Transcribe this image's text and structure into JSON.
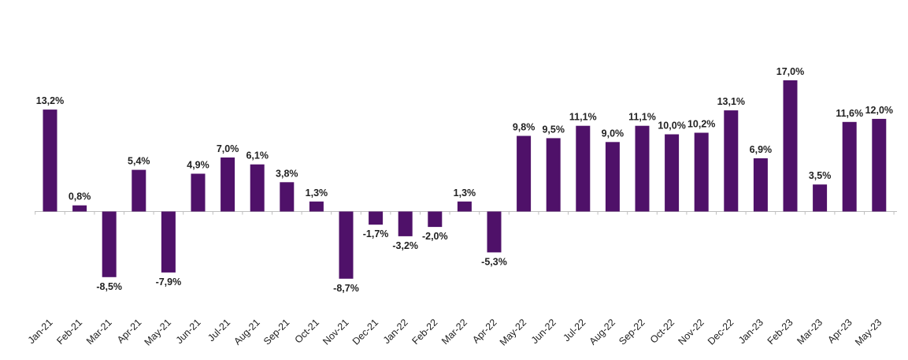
{
  "chart_data": {
    "type": "bar",
    "title": "",
    "xlabel": "",
    "ylabel": "",
    "categories": [
      "Jan-21",
      "Feb-21",
      "Mar-21",
      "Apr-21",
      "May-21",
      "Jun-21",
      "Jul-21",
      "Aug-21",
      "Sep-21",
      "Oct-21",
      "Nov-21",
      "Dec-21",
      "Jan-22",
      "Feb-22",
      "Mar-22",
      "Apr-22",
      "May-22",
      "Jun-22",
      "Jul-22",
      "Aug-22",
      "Sep-22",
      "Oct-22",
      "Nov-22",
      "Dec-22",
      "Jan-23",
      "Feb-23",
      "Mar-23",
      "Apr-23",
      "May-23"
    ],
    "values": [
      13.2,
      0.8,
      -8.5,
      5.4,
      -7.9,
      4.9,
      7.0,
      6.1,
      3.8,
      1.3,
      -8.7,
      -1.7,
      -3.2,
      -2.0,
      1.3,
      -5.3,
      9.8,
      9.5,
      11.1,
      9.0,
      11.1,
      10.0,
      10.2,
      13.1,
      6.9,
      17.0,
      3.5,
      11.6,
      12.0
    ],
    "data_labels": [
      "13,2%",
      "0,8%",
      "-8,5%",
      "5,4%",
      "-7,9%",
      "4,9%",
      "7,0%",
      "6,1%",
      "3,8%",
      "1,3%",
      "-8,7%",
      "-1,7%",
      "-3,2%",
      "-2,0%",
      "1,3%",
      "-5,3%",
      "9,8%",
      "9,5%",
      "11,1%",
      "9,0%",
      "11,1%",
      "10,0%",
      "10,2%",
      "13,1%",
      "6,9%",
      "17,0%",
      "3,5%",
      "11,6%",
      "12,0%"
    ],
    "unit": "%",
    "grid": false,
    "legend": "none",
    "bar_color": "#4f1169",
    "axis_color": "#bfbfbf",
    "text_color": "#222222"
  }
}
